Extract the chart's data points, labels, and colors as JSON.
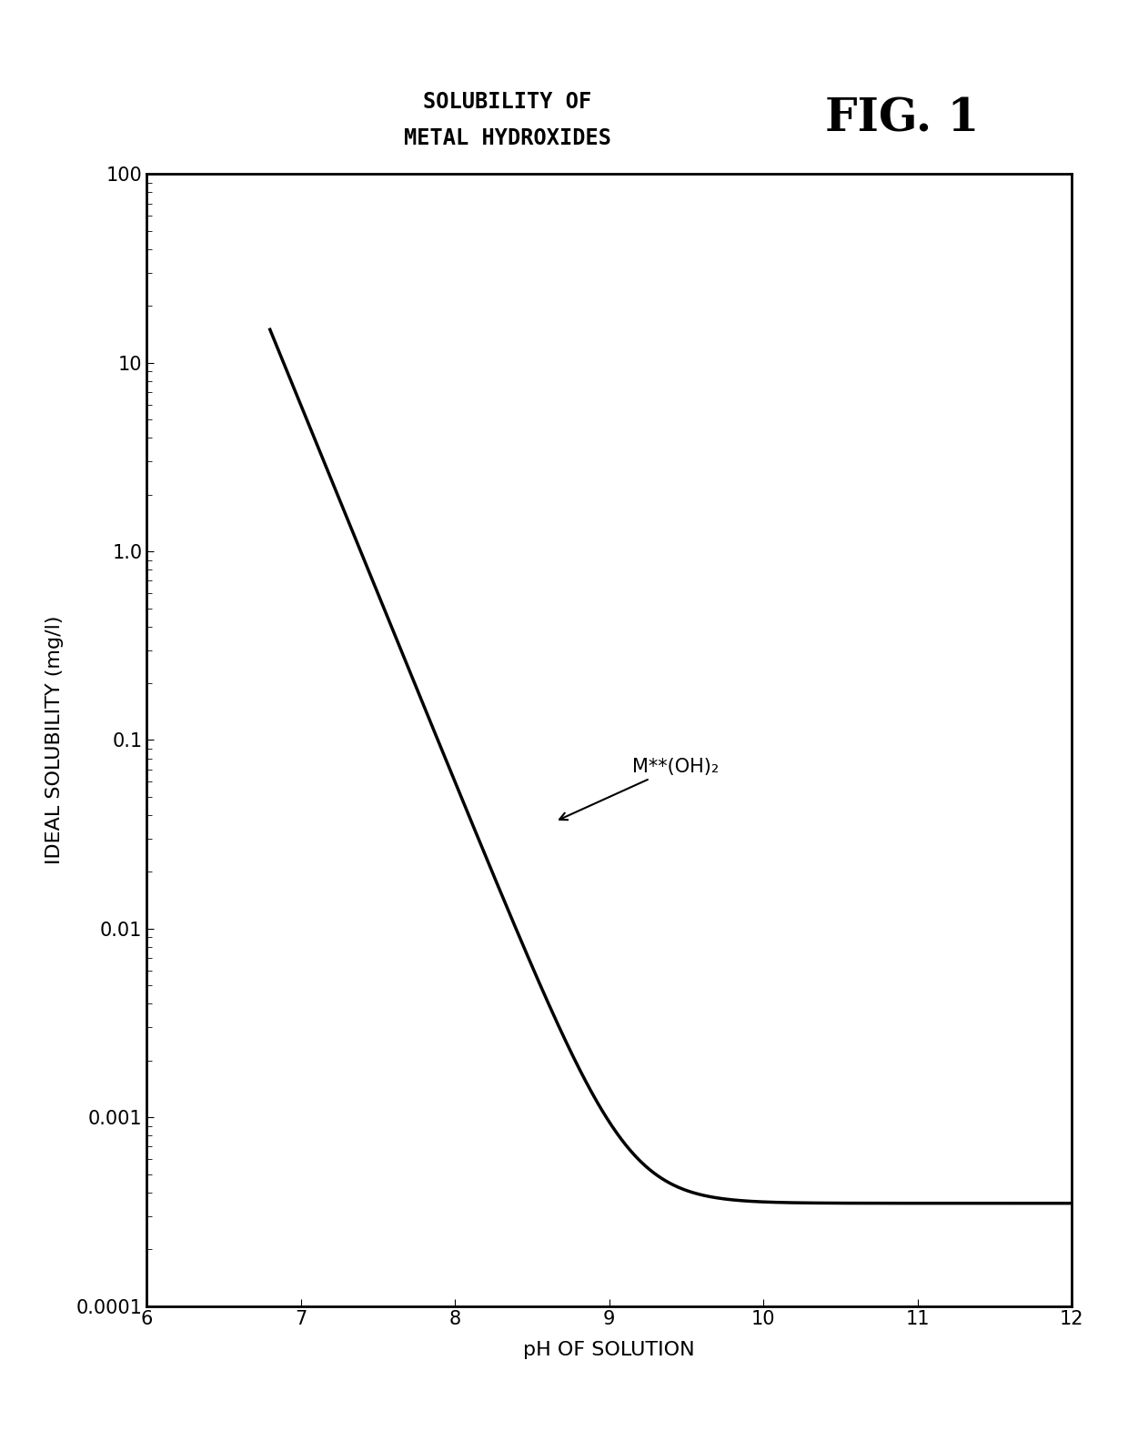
{
  "title_line1": "SOLUBILITY OF",
  "title_line2": "METAL HYDROXIDES",
  "fig_label": "FIG. 1",
  "xlabel": "pH OF SOLUTION",
  "ylabel": "IDEAL SOLUBILITY (mg/l)",
  "xlim": [
    6,
    12
  ],
  "ylim": [
    0.0001,
    100
  ],
  "x_ticks": [
    6,
    7,
    8,
    9,
    10,
    11,
    12
  ],
  "curve_label": "M**(OH)₂",
  "annotation_pH": 8.65,
  "annotation_S": 0.037,
  "annotation_text_pH": 9.15,
  "annotation_text_S": 0.072,
  "line_color": "#000000",
  "line_width": 2.5,
  "background_color": "#ffffff",
  "title_fontsize": 17,
  "fig_label_fontsize": 36,
  "axis_label_fontsize": 16,
  "tick_fontsize": 15,
  "annotation_fontsize": 15,
  "curve_pH_start": 6.8,
  "curve_pH_end": 12.0,
  "ksp": 5e-12,
  "mw": 58.3,
  "floor": 0.0003
}
